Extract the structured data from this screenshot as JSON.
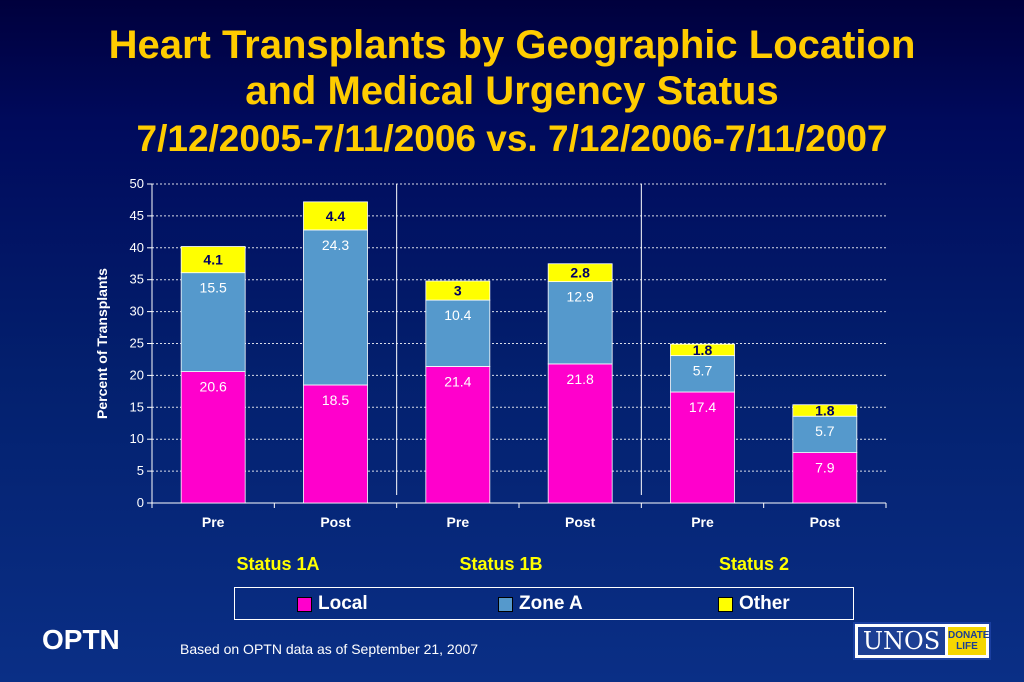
{
  "title": {
    "line1": "Heart Transplants by Geographic Location",
    "line2": "and Medical Urgency Status",
    "line3": "7/12/2005-7/11/2006 vs. 7/12/2006-7/11/2007"
  },
  "chart_data": {
    "type": "bar",
    "stacked": true,
    "categories": [
      "Pre",
      "Post",
      "Pre",
      "Post",
      "Pre",
      "Post"
    ],
    "groups": [
      {
        "label": "Status 1A",
        "categories": [
          "Pre",
          "Post"
        ]
      },
      {
        "label": "Status 1B",
        "categories": [
          "Pre",
          "Post"
        ]
      },
      {
        "label": "Status 2",
        "categories": [
          "Pre",
          "Post"
        ]
      }
    ],
    "series": [
      {
        "name": "Local",
        "color": "#ff00cc",
        "values": [
          20.6,
          18.5,
          21.4,
          21.8,
          17.4,
          7.9
        ]
      },
      {
        "name": "Zone A",
        "color": "#5599cc",
        "values": [
          15.5,
          24.3,
          10.4,
          12.9,
          5.7,
          5.7
        ]
      },
      {
        "name": "Other",
        "color": "#ffff00",
        "values": [
          4.1,
          4.4,
          3,
          2.8,
          1.8,
          1.8
        ]
      }
    ],
    "ylabel": "Percent of Transplants",
    "ylim": [
      0,
      50
    ],
    "yticks": [
      0,
      5,
      10,
      15,
      20,
      25,
      30,
      35,
      40,
      45,
      50
    ],
    "grid": true,
    "legend_position": "bottom"
  },
  "legend": {
    "items": [
      {
        "label": "Local",
        "color": "#ff00cc"
      },
      {
        "label": "Zone A",
        "color": "#5599cc"
      },
      {
        "label": "Other",
        "color": "#ffff00"
      }
    ]
  },
  "footer": {
    "org": "OPTN",
    "note": "Based on OPTN data as of  September 21, 2007",
    "logo_text": "UNOS",
    "logo_badge_line1": "DONATE",
    "logo_badge_line2": "LIFE"
  }
}
